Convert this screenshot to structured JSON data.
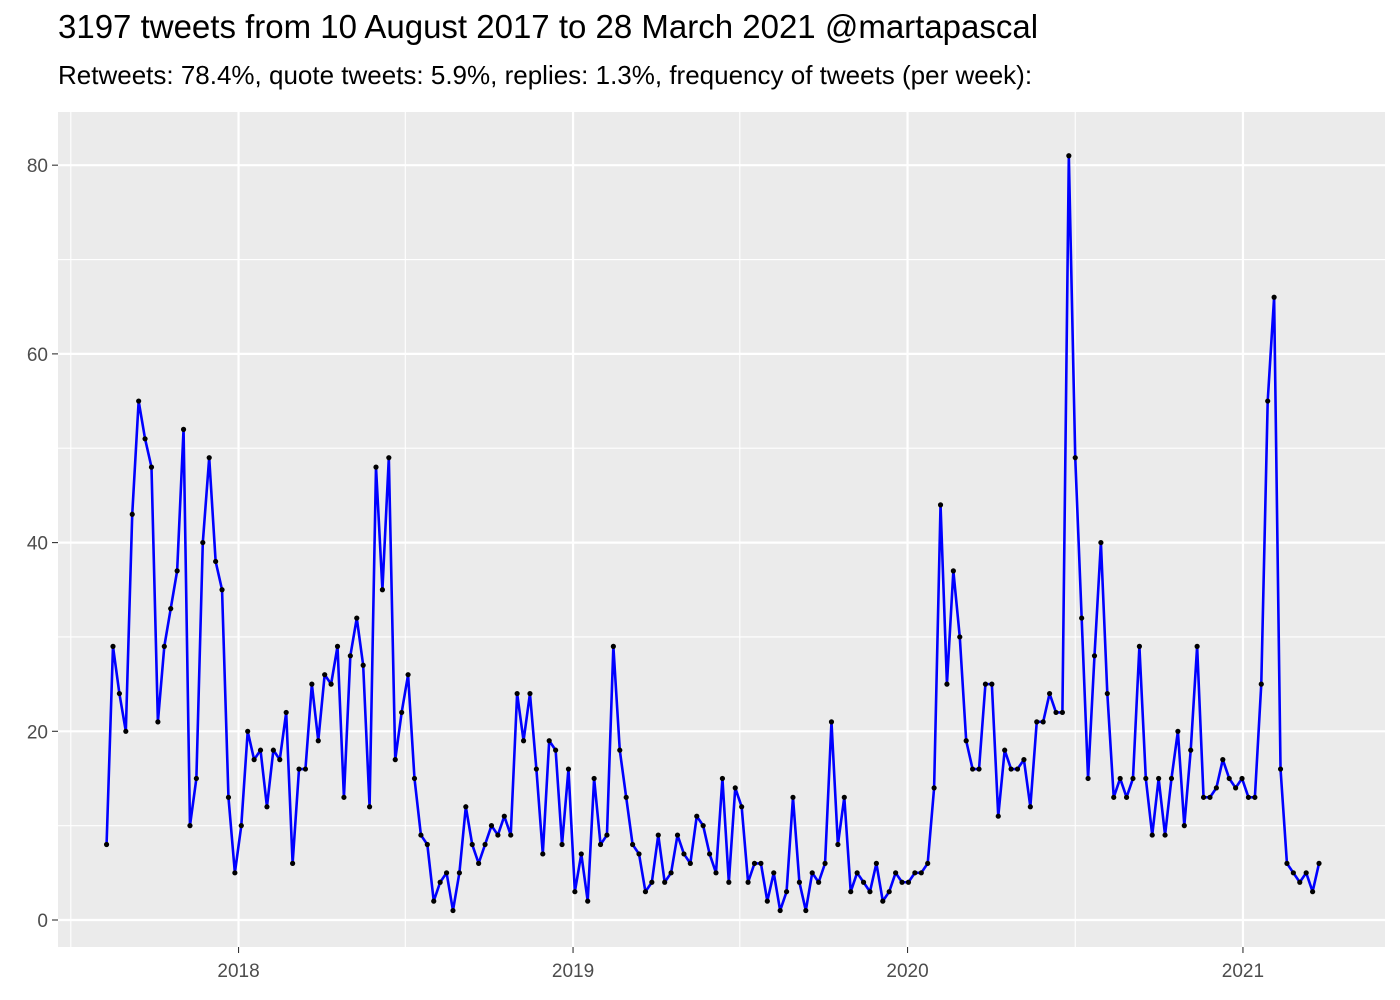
{
  "title": "3197 tweets from 10 August 2017 to 28 March 2021 @martapascal",
  "subtitle": "Retweets: 78.4%, quote tweets: 5.9%, replies: 1.3%, frequency of tweets (per week):",
  "colors": {
    "line": "#0000ff",
    "points": "#000000",
    "panel_background": "#ebebeb",
    "grid": "#ffffff",
    "tick_text": "#4d4d4d"
  },
  "chart_data": {
    "type": "line",
    "title": "3197 tweets from 10 August 2017 to 28 March 2021 @martapascal",
    "subtitle": "Retweets: 78.4%, quote tweets: 5.9%, replies: 1.3%, frequency of tweets (per week):",
    "xlabel": "",
    "ylabel": "",
    "x_tick_labels": [
      "2018",
      "2019",
      "2020",
      "2021"
    ],
    "y_tick_labels": [
      "0",
      "20",
      "40",
      "60",
      "80"
    ],
    "ylim": [
      0,
      85
    ],
    "xlim": [
      "2017-06-18",
      "2021-06-05"
    ],
    "grid": true,
    "legend": "none",
    "series": [
      {
        "x": [
          "2017-08-10",
          "2017-08-17",
          "2017-08-24",
          "2017-08-31",
          "2017-09-07",
          "2017-09-14",
          "2017-09-21",
          "2017-09-28",
          "2017-10-05",
          "2017-10-12",
          "2017-10-19",
          "2017-10-26",
          "2017-11-02",
          "2017-11-09",
          "2017-11-16",
          "2017-11-23",
          "2017-11-30",
          "2017-12-07",
          "2017-12-14",
          "2017-12-21",
          "2017-12-28",
          "2018-01-04",
          "2018-01-11",
          "2018-01-18",
          "2018-01-25",
          "2018-02-01",
          "2018-02-08",
          "2018-02-15",
          "2018-02-22",
          "2018-03-01",
          "2018-03-08",
          "2018-03-15",
          "2018-03-22",
          "2018-03-29",
          "2018-04-05",
          "2018-04-12",
          "2018-04-19",
          "2018-04-26",
          "2018-05-03",
          "2018-05-10",
          "2018-05-17",
          "2018-05-24",
          "2018-05-31",
          "2018-06-07",
          "2018-06-14",
          "2018-06-21",
          "2018-06-28",
          "2018-07-05",
          "2018-07-12",
          "2018-07-19",
          "2018-07-26",
          "2018-08-02",
          "2018-08-09",
          "2018-08-16",
          "2018-08-23",
          "2018-08-30",
          "2018-09-06",
          "2018-09-13",
          "2018-09-20",
          "2018-09-27",
          "2018-10-04",
          "2018-10-11",
          "2018-10-18",
          "2018-10-25",
          "2018-11-01",
          "2018-11-08",
          "2018-11-15",
          "2018-11-22",
          "2018-11-29",
          "2018-12-06",
          "2018-12-13",
          "2018-12-20",
          "2018-12-27",
          "2019-01-03",
          "2019-01-10",
          "2019-01-17",
          "2019-01-24",
          "2019-01-31",
          "2019-02-07",
          "2019-02-14",
          "2019-02-21",
          "2019-02-28",
          "2019-03-07",
          "2019-03-14",
          "2019-03-21",
          "2019-03-28",
          "2019-04-04",
          "2019-04-11",
          "2019-04-18",
          "2019-04-25",
          "2019-05-02",
          "2019-05-09",
          "2019-05-16",
          "2019-05-23",
          "2019-05-30",
          "2019-06-06",
          "2019-06-13",
          "2019-06-20",
          "2019-06-27",
          "2019-07-04",
          "2019-07-11",
          "2019-07-18",
          "2019-07-25",
          "2019-08-01",
          "2019-08-08",
          "2019-08-15",
          "2019-08-22",
          "2019-08-29",
          "2019-09-05",
          "2019-09-12",
          "2019-09-19",
          "2019-09-26",
          "2019-10-03",
          "2019-10-10",
          "2019-10-17",
          "2019-10-24",
          "2019-10-31",
          "2019-11-07",
          "2019-11-14",
          "2019-11-21",
          "2019-11-28",
          "2019-12-05",
          "2019-12-12",
          "2019-12-19",
          "2019-12-26",
          "2020-01-02",
          "2020-01-09",
          "2020-01-16",
          "2020-01-23",
          "2020-01-30",
          "2020-02-06",
          "2020-02-13",
          "2020-02-20",
          "2020-02-27",
          "2020-03-05",
          "2020-03-12",
          "2020-03-19",
          "2020-03-26",
          "2020-04-02",
          "2020-04-09",
          "2020-04-16",
          "2020-04-23",
          "2020-04-30",
          "2020-05-07",
          "2020-05-14",
          "2020-05-21",
          "2020-05-28",
          "2020-06-04",
          "2020-06-11",
          "2020-06-18",
          "2020-06-25",
          "2020-07-02",
          "2020-07-09",
          "2020-07-16",
          "2020-07-23",
          "2020-07-30",
          "2020-08-06",
          "2020-08-13",
          "2020-08-20",
          "2020-08-27",
          "2020-09-03",
          "2020-09-10",
          "2020-09-17",
          "2020-09-24",
          "2020-10-01",
          "2020-10-08",
          "2020-10-15",
          "2020-10-22",
          "2020-10-29",
          "2020-11-05",
          "2020-11-12",
          "2020-11-19",
          "2020-11-26",
          "2020-12-03",
          "2020-12-10",
          "2020-12-17",
          "2020-12-24",
          "2020-12-31",
          "2021-01-07",
          "2021-01-14",
          "2021-01-21",
          "2021-01-28",
          "2021-02-04",
          "2021-02-11",
          "2021-02-18",
          "2021-02-25",
          "2021-03-04",
          "2021-03-11",
          "2021-03-18",
          "2021-03-25"
        ],
        "y": [
          8,
          29,
          24,
          20,
          43,
          55,
          51,
          48,
          21,
          29,
          33,
          37,
          52,
          10,
          15,
          40,
          49,
          38,
          35,
          13,
          5,
          10,
          20,
          17,
          18,
          12,
          18,
          17,
          22,
          6,
          16,
          16,
          25,
          19,
          26,
          25,
          29,
          13,
          28,
          32,
          27,
          12,
          48,
          35,
          49,
          17,
          22,
          26,
          15,
          9,
          8,
          2,
          4,
          5,
          1,
          5,
          12,
          8,
          6,
          8,
          10,
          9,
          11,
          9,
          24,
          19,
          24,
          16,
          7,
          19,
          18,
          8,
          16,
          3,
          7,
          2,
          15,
          8,
          9,
          29,
          18,
          13,
          8,
          7,
          3,
          4,
          9,
          4,
          5,
          9,
          7,
          6,
          11,
          10,
          7,
          5,
          15,
          4,
          14,
          12,
          4,
          6,
          6,
          2,
          5,
          1,
          3,
          13,
          4,
          1,
          5,
          4,
          6,
          21,
          8,
          13,
          3,
          5,
          4,
          3,
          6,
          2,
          3,
          5,
          4,
          4,
          5,
          5,
          6,
          14,
          44,
          25,
          37,
          30,
          19,
          16,
          16,
          25,
          25,
          11,
          18,
          16,
          16,
          17,
          12,
          21,
          21,
          24,
          22,
          22,
          81,
          49,
          32,
          15,
          28,
          40,
          24,
          13,
          15,
          13,
          15,
          29,
          15,
          9,
          15,
          9,
          15,
          20,
          10,
          18,
          29,
          13,
          13,
          14,
          17,
          15,
          14,
          15,
          13,
          13,
          25,
          55,
          66,
          16,
          6,
          5,
          4,
          5,
          3,
          6
        ]
      }
    ]
  }
}
